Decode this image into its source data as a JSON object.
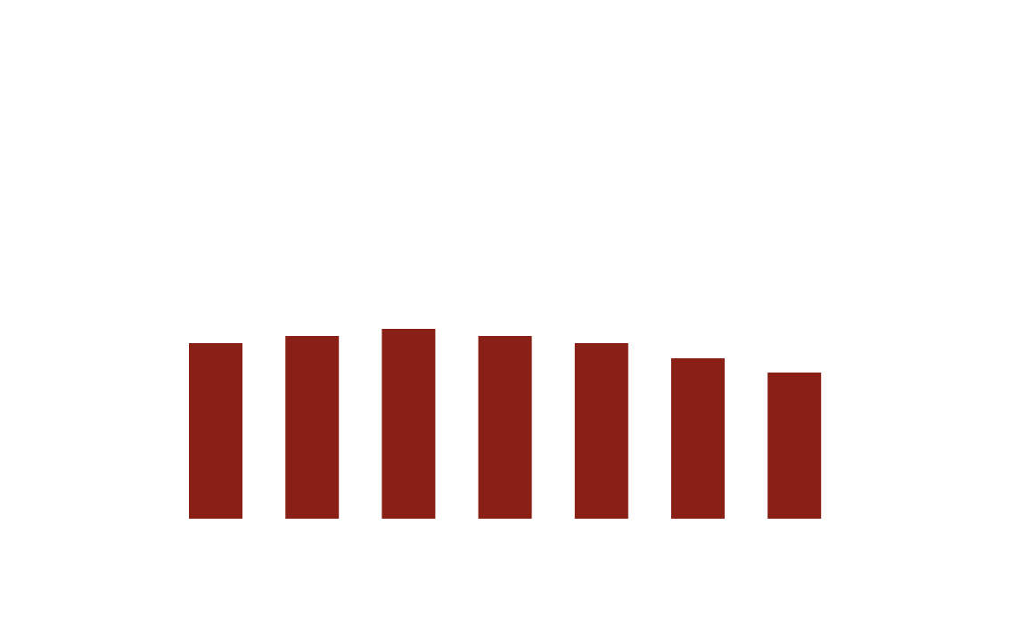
{
  "colors": {
    "background": "#ffffff",
    "bar": "#8a2015"
  },
  "chart_data": {
    "type": "bar",
    "title": "",
    "xlabel": "",
    "ylabel": "",
    "categories": [
      "",
      "",
      "",
      "",
      "",
      "",
      ""
    ],
    "values": [
      197,
      205,
      213,
      205,
      197,
      180,
      164
    ],
    "ylim": [
      0,
      450
    ],
    "grid": false,
    "legend": "none"
  }
}
